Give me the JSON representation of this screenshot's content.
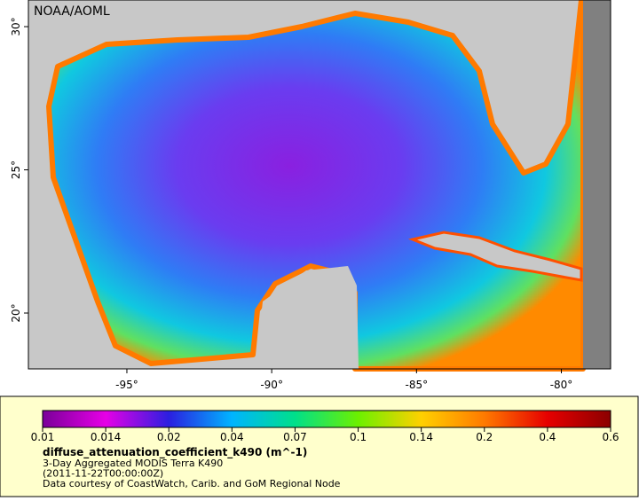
{
  "map": {
    "credit": "NOAA/AOML",
    "xlim": [
      -98.4,
      -78.3
    ],
    "ylim": [
      18.05,
      30.93
    ],
    "xticks": [
      {
        "value": -95,
        "label": "-95°"
      },
      {
        "value": -90,
        "label": "-90°"
      },
      {
        "value": -85,
        "label": "-85°"
      },
      {
        "value": -80,
        "label": "-80°"
      }
    ],
    "yticks": [
      {
        "value": 30,
        "label": "30°"
      },
      {
        "value": 25,
        "label": "25°"
      },
      {
        "value": 20,
        "label": "20°"
      }
    ]
  },
  "colorbar": {
    "ticks": [
      0.01,
      0.014,
      0.02,
      0.04,
      0.07,
      0.1,
      0.14,
      0.2,
      0.4,
      0.6
    ],
    "colors": [
      "#7a0099",
      "#e600e6",
      "#2b1fe0",
      "#00b4ff",
      "#00e08a",
      "#6cf000",
      "#ffd000",
      "#ff7a00",
      "#e60000",
      "#8b0000"
    ],
    "title": "diffuse_attenuation_coefficient_k490 (m^-1)",
    "lines": [
      "3-Day Aggregated MODIS Terra K490",
      "(2011-11-22T00:00:00Z)",
      "Data courtesy of CoastWatch, Carib. and GoM Regional Node"
    ]
  }
}
